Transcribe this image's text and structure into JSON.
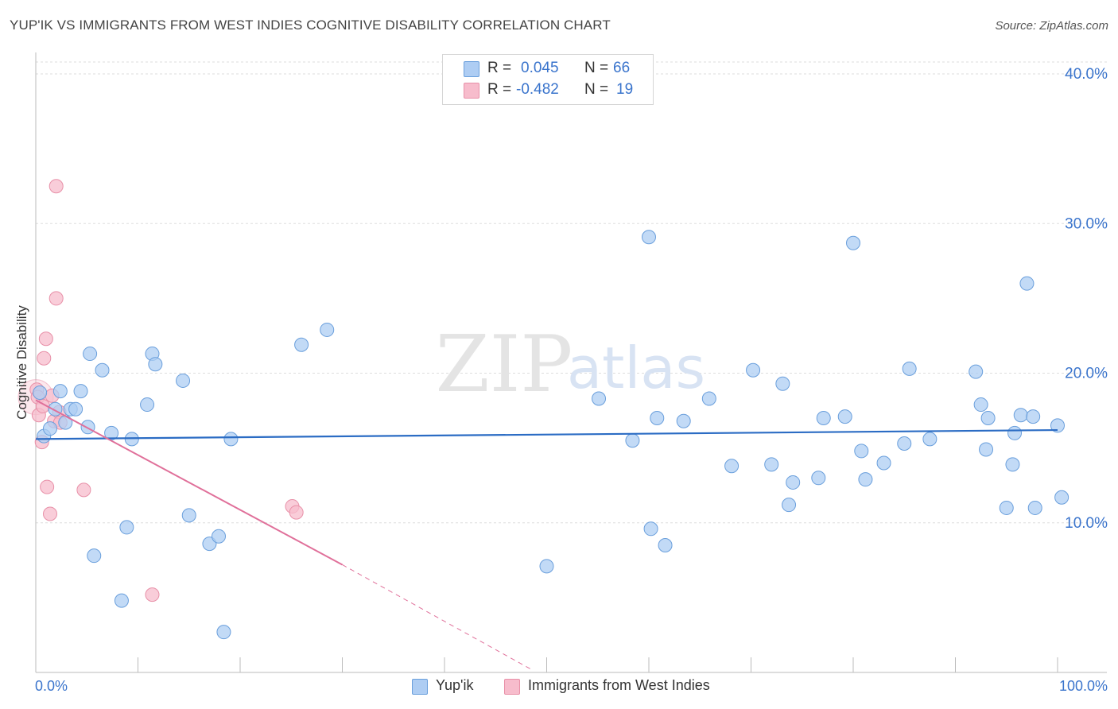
{
  "header": {
    "title": "YUP'IK VS IMMIGRANTS FROM WEST INDIES COGNITIVE DISABILITY CORRELATION CHART",
    "source": "Source: ZipAtlas.com"
  },
  "watermark": {
    "zip": "ZIP",
    "atlas": "atlas"
  },
  "legend": {
    "rows": [
      {
        "r_label": "R =",
        "r_value": "0.045",
        "n_label": "N =",
        "n_value": "66"
      },
      {
        "r_label": "R =",
        "r_value": "-0.482",
        "n_label": "N =",
        "n_value": "19"
      }
    ]
  },
  "bottom_legend": {
    "series1": "Yup'ik",
    "series2": "Immigrants from West Indies"
  },
  "colors": {
    "blue_fill": "#aecdf3",
    "blue_stroke": "#6a9fdc",
    "blue_line": "#2b6cc4",
    "pink_fill": "#f7bccc",
    "pink_stroke": "#e890a8",
    "pink_line": "#e0709a",
    "tick_label": "#3a74cc",
    "grid": "#dddddd"
  },
  "chart_data": {
    "type": "scatter",
    "title": "YUP'IK VS IMMIGRANTS FROM WEST INDIES COGNITIVE DISABILITY CORRELATION CHART",
    "xlabel": "",
    "ylabel": "Cognitive Disability",
    "xlim": [
      0,
      100
    ],
    "ylim": [
      0,
      40.8
    ],
    "x_tick_labels": [
      "0.0%",
      "100.0%"
    ],
    "y_ticks": [
      10,
      20,
      30,
      40
    ],
    "y_tick_labels": [
      "10.0%",
      "20.0%",
      "30.0%",
      "40.0%"
    ],
    "grid": true,
    "series": [
      {
        "name": "Yup'ik",
        "r": 0.045,
        "n": 66,
        "trend": {
          "x": [
            0,
            100
          ],
          "y": [
            15.6,
            16.2
          ]
        },
        "points": [
          [
            0.4,
            18.7
          ],
          [
            0.8,
            15.8
          ],
          [
            1.4,
            16.3
          ],
          [
            1.9,
            17.6
          ],
          [
            2.4,
            18.8
          ],
          [
            2.9,
            16.7
          ],
          [
            3.4,
            17.6
          ],
          [
            3.9,
            17.6
          ],
          [
            4.4,
            18.8
          ],
          [
            5.1,
            16.4
          ],
          [
            5.3,
            21.3
          ],
          [
            5.7,
            7.8
          ],
          [
            6.5,
            20.2
          ],
          [
            7.4,
            16.0
          ],
          [
            8.4,
            4.8
          ],
          [
            8.9,
            9.7
          ],
          [
            9.4,
            15.6
          ],
          [
            10.9,
            17.9
          ],
          [
            11.4,
            21.3
          ],
          [
            11.7,
            20.6
          ],
          [
            14.4,
            19.5
          ],
          [
            15.0,
            10.5
          ],
          [
            17.0,
            8.6
          ],
          [
            17.9,
            9.1
          ],
          [
            18.4,
            2.7
          ],
          [
            19.1,
            15.6
          ],
          [
            26.0,
            21.9
          ],
          [
            28.5,
            22.9
          ],
          [
            50.0,
            7.1
          ],
          [
            55.1,
            18.3
          ],
          [
            58.4,
            15.5
          ],
          [
            60.0,
            29.1
          ],
          [
            60.2,
            9.6
          ],
          [
            60.8,
            17.0
          ],
          [
            61.6,
            8.5
          ],
          [
            63.4,
            16.8
          ],
          [
            65.9,
            18.3
          ],
          [
            68.1,
            13.8
          ],
          [
            70.2,
            20.2
          ],
          [
            72.0,
            13.9
          ],
          [
            73.1,
            19.3
          ],
          [
            73.7,
            11.2
          ],
          [
            74.1,
            12.7
          ],
          [
            76.6,
            13.0
          ],
          [
            77.1,
            17.0
          ],
          [
            79.2,
            17.1
          ],
          [
            80.0,
            28.7
          ],
          [
            80.8,
            14.8
          ],
          [
            81.2,
            12.9
          ],
          [
            83.0,
            14.0
          ],
          [
            85.0,
            15.3
          ],
          [
            85.5,
            20.3
          ],
          [
            87.5,
            15.6
          ],
          [
            92.0,
            20.1
          ],
          [
            92.5,
            17.9
          ],
          [
            93.0,
            14.9
          ],
          [
            93.2,
            17.0
          ],
          [
            95.0,
            11.0
          ],
          [
            95.6,
            13.9
          ],
          [
            95.8,
            16.0
          ],
          [
            96.4,
            17.2
          ],
          [
            97.0,
            26.0
          ],
          [
            97.6,
            17.1
          ],
          [
            97.8,
            11.0
          ],
          [
            100.0,
            16.5
          ],
          [
            100.4,
            11.7
          ]
        ]
      },
      {
        "name": "Immigrants from West Indies",
        "r": -0.482,
        "n": 19,
        "trend": {
          "x": [
            0,
            30,
            48.5
          ],
          "y": [
            18.2,
            7.2,
            0.2
          ]
        },
        "points": [
          [
            0.1,
            18.9
          ],
          [
            0.2,
            18.4
          ],
          [
            0.3,
            17.2
          ],
          [
            0.6,
            15.4
          ],
          [
            0.7,
            17.8
          ],
          [
            0.8,
            21.0
          ],
          [
            1.0,
            22.3
          ],
          [
            1.1,
            12.4
          ],
          [
            1.4,
            10.6
          ],
          [
            1.6,
            18.5
          ],
          [
            1.8,
            16.8
          ],
          [
            2.0,
            25.0
          ],
          [
            2.0,
            32.5
          ],
          [
            2.3,
            17.4
          ],
          [
            2.4,
            16.7
          ],
          [
            4.7,
            12.2
          ],
          [
            11.4,
            5.2
          ],
          [
            25.1,
            11.1
          ],
          [
            25.5,
            10.7
          ]
        ]
      }
    ]
  }
}
